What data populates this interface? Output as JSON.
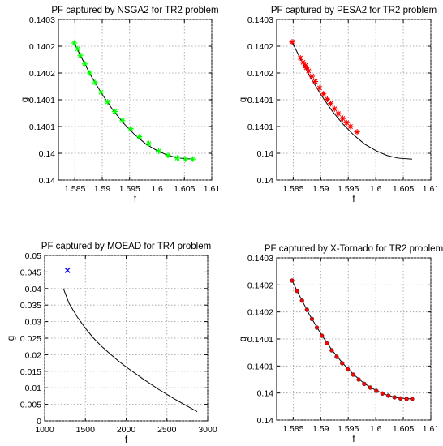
{
  "chart_data": [
    {
      "type": "line",
      "title": "PF captured by NSGA2 for TR2 problem",
      "xlabel": "f",
      "ylabel": "g",
      "xlim": [
        1.582,
        1.61
      ],
      "ylim": [
        0.13995,
        0.14025
      ],
      "xticks": [
        1.585,
        1.59,
        1.595,
        1.6,
        1.605,
        1.61
      ],
      "xtick_labels": [
        "1.585",
        "1.59",
        "1.595",
        "1.6",
        "1.605",
        "1.61"
      ],
      "yticks": [
        0.13995,
        0.14,
        0.14005,
        0.1401,
        0.14015,
        0.1402,
        0.14025
      ],
      "ytick_labels": [
        "0.14",
        "0.14",
        "0.1401",
        "0.1401",
        "0.1402",
        "0.1402",
        "0.1403"
      ],
      "grid": true,
      "series": [
        {
          "role": "reference-front",
          "color": "#000000",
          "marker": "none",
          "x": [
            1.5848,
            1.586,
            1.588,
            1.59,
            1.592,
            1.594,
            1.596,
            1.598,
            1.6,
            1.602,
            1.604,
            1.6066
          ],
          "y": [
            0.140208,
            0.140183,
            0.140144,
            0.14011,
            0.14008,
            0.140055,
            0.140034,
            0.140017,
            0.140005,
            0.139996,
            0.139991,
            0.139989
          ]
        },
        {
          "role": "captured-front",
          "color": "#00ff00",
          "marker": "star",
          "x": [
            1.5849,
            1.5855,
            1.586,
            1.5868,
            1.5877,
            1.5887,
            1.5898,
            1.591,
            1.5923,
            1.5937,
            1.5952,
            1.5968,
            1.5985,
            1.6003,
            1.602,
            1.6037,
            1.6052,
            1.6065
          ],
          "y": [
            0.140206,
            0.140195,
            0.140183,
            0.140167,
            0.14015,
            0.140132,
            0.140114,
            0.140096,
            0.140078,
            0.140061,
            0.140046,
            0.140031,
            0.140018,
            0.140004,
            0.139996,
            0.139991,
            0.139989,
            0.139989
          ]
        }
      ]
    },
    {
      "type": "line",
      "title": "PF captured by PESA2 for TR2 problem",
      "xlabel": "f",
      "ylabel": "g",
      "xlim": [
        1.582,
        1.61
      ],
      "ylim": [
        0.13995,
        0.14025
      ],
      "xticks": [
        1.585,
        1.59,
        1.595,
        1.6,
        1.605,
        1.61
      ],
      "xtick_labels": [
        "1.585",
        "1.59",
        "1.595",
        "1.6",
        "1.605",
        "1.61"
      ],
      "yticks": [
        0.13995,
        0.14,
        0.14005,
        0.1401,
        0.14015,
        0.1402,
        0.14025
      ],
      "ytick_labels": [
        "0.14",
        "0.14",
        "0.1401",
        "0.1401",
        "0.1402",
        "0.1402",
        "0.1403"
      ],
      "grid": true,
      "series": [
        {
          "role": "reference-front",
          "color": "#000000",
          "marker": "none",
          "x": [
            1.5848,
            1.586,
            1.588,
            1.59,
            1.592,
            1.594,
            1.596,
            1.598,
            1.6,
            1.602,
            1.604,
            1.6066
          ],
          "y": [
            0.140208,
            0.140183,
            0.140144,
            0.14011,
            0.14008,
            0.140055,
            0.140034,
            0.140017,
            0.140005,
            0.139996,
            0.139991,
            0.139989
          ]
        },
        {
          "role": "captured-front",
          "color": "#ff0000",
          "marker": "star",
          "x": [
            1.5848,
            1.5863,
            1.5868,
            1.5872,
            1.5874,
            1.5878,
            1.5884,
            1.589,
            1.5898,
            1.5905,
            1.5912,
            1.5918,
            1.5925,
            1.5932,
            1.594,
            1.5947,
            1.5954,
            1.5966
          ],
          "y": [
            0.140208,
            0.140178,
            0.14017,
            0.140164,
            0.14016,
            0.140154,
            0.140144,
            0.140134,
            0.140122,
            0.140111,
            0.140101,
            0.140093,
            0.140083,
            0.140074,
            0.140065,
            0.140057,
            0.14005,
            0.14004
          ]
        }
      ]
    },
    {
      "type": "line",
      "title": "PF captured by MOEAD for TR4 problem",
      "xlabel": "f",
      "ylabel": "g",
      "xlim": [
        1000,
        3000
      ],
      "ylim": [
        0,
        0.05
      ],
      "xticks": [
        1000,
        1500,
        2000,
        2500,
        3000
      ],
      "xtick_labels": [
        "1000",
        "1500",
        "2000",
        "2500",
        "3000"
      ],
      "yticks": [
        0,
        0.005,
        0.01,
        0.015,
        0.02,
        0.025,
        0.03,
        0.035,
        0.04,
        0.045,
        0.05
      ],
      "ytick_labels": [
        "0",
        "0.005",
        "0.01",
        "0.015",
        "0.02",
        "0.025",
        "0.03",
        "0.035",
        "0.04",
        "0.045",
        "0.05"
      ],
      "grid": true,
      "series": [
        {
          "role": "reference-front",
          "color": "#000000",
          "marker": "none",
          "x": [
            1230,
            1300,
            1400,
            1500,
            1600,
            1700,
            1800,
            1900,
            2000,
            2200,
            2400,
            2600,
            2870
          ],
          "y": [
            0.04,
            0.0355,
            0.0314,
            0.028,
            0.025,
            0.0225,
            0.0203,
            0.0182,
            0.0163,
            0.0128,
            0.0095,
            0.0065,
            0.0028
          ]
        },
        {
          "role": "captured-front",
          "color": "#0000ff",
          "marker": "x",
          "x": [
            1280
          ],
          "y": [
            0.0455
          ]
        }
      ]
    },
    {
      "type": "line",
      "title": "PF captured by X-Tornado for TR2 problem",
      "xlabel": "f",
      "ylabel": "g",
      "xlim": [
        1.582,
        1.61
      ],
      "ylim": [
        0.13995,
        0.14025
      ],
      "xticks": [
        1.585,
        1.59,
        1.595,
        1.6,
        1.605,
        1.61
      ],
      "xtick_labels": [
        "1.585",
        "1.59",
        "1.595",
        "1.6",
        "1.605",
        "1.61"
      ],
      "yticks": [
        0.13995,
        0.14,
        0.14005,
        0.1401,
        0.14015,
        0.1402,
        0.14025
      ],
      "ytick_labels": [
        "0.14",
        "0.14",
        "0.1401",
        "0.1401",
        "0.1402",
        "0.1402",
        "0.1403"
      ],
      "grid": true,
      "series": [
        {
          "role": "reference-front",
          "color": "#000000",
          "marker": "none",
          "x": [
            1.5848,
            1.586,
            1.588,
            1.59,
            1.592,
            1.594,
            1.596,
            1.598,
            1.6,
            1.602,
            1.604,
            1.6066
          ],
          "y": [
            0.140208,
            0.140183,
            0.140144,
            0.14011,
            0.14008,
            0.140055,
            0.140034,
            0.140017,
            0.140005,
            0.139996,
            0.139991,
            0.139989
          ]
        },
        {
          "role": "captured-front",
          "color": "#ff0000",
          "marker": "circle",
          "x": [
            1.5848,
            1.5857,
            1.5866,
            1.5875,
            1.5884,
            1.5893,
            1.5902,
            1.5911,
            1.592,
            1.5929,
            1.5939,
            1.5949,
            1.5959,
            1.5969,
            1.5979,
            1.599,
            1.6001,
            1.6012,
            1.6023,
            1.6034,
            1.6045,
            1.6056,
            1.6066
          ],
          "y": [
            0.140208,
            0.140189,
            0.140171,
            0.140154,
            0.140137,
            0.140121,
            0.140106,
            0.140092,
            0.140079,
            0.140067,
            0.140055,
            0.140044,
            0.140034,
            0.140025,
            0.140017,
            0.14001,
            0.140004,
            0.139999,
            0.139995,
            0.139992,
            0.13999,
            0.139989,
            0.139989
          ]
        }
      ]
    }
  ]
}
